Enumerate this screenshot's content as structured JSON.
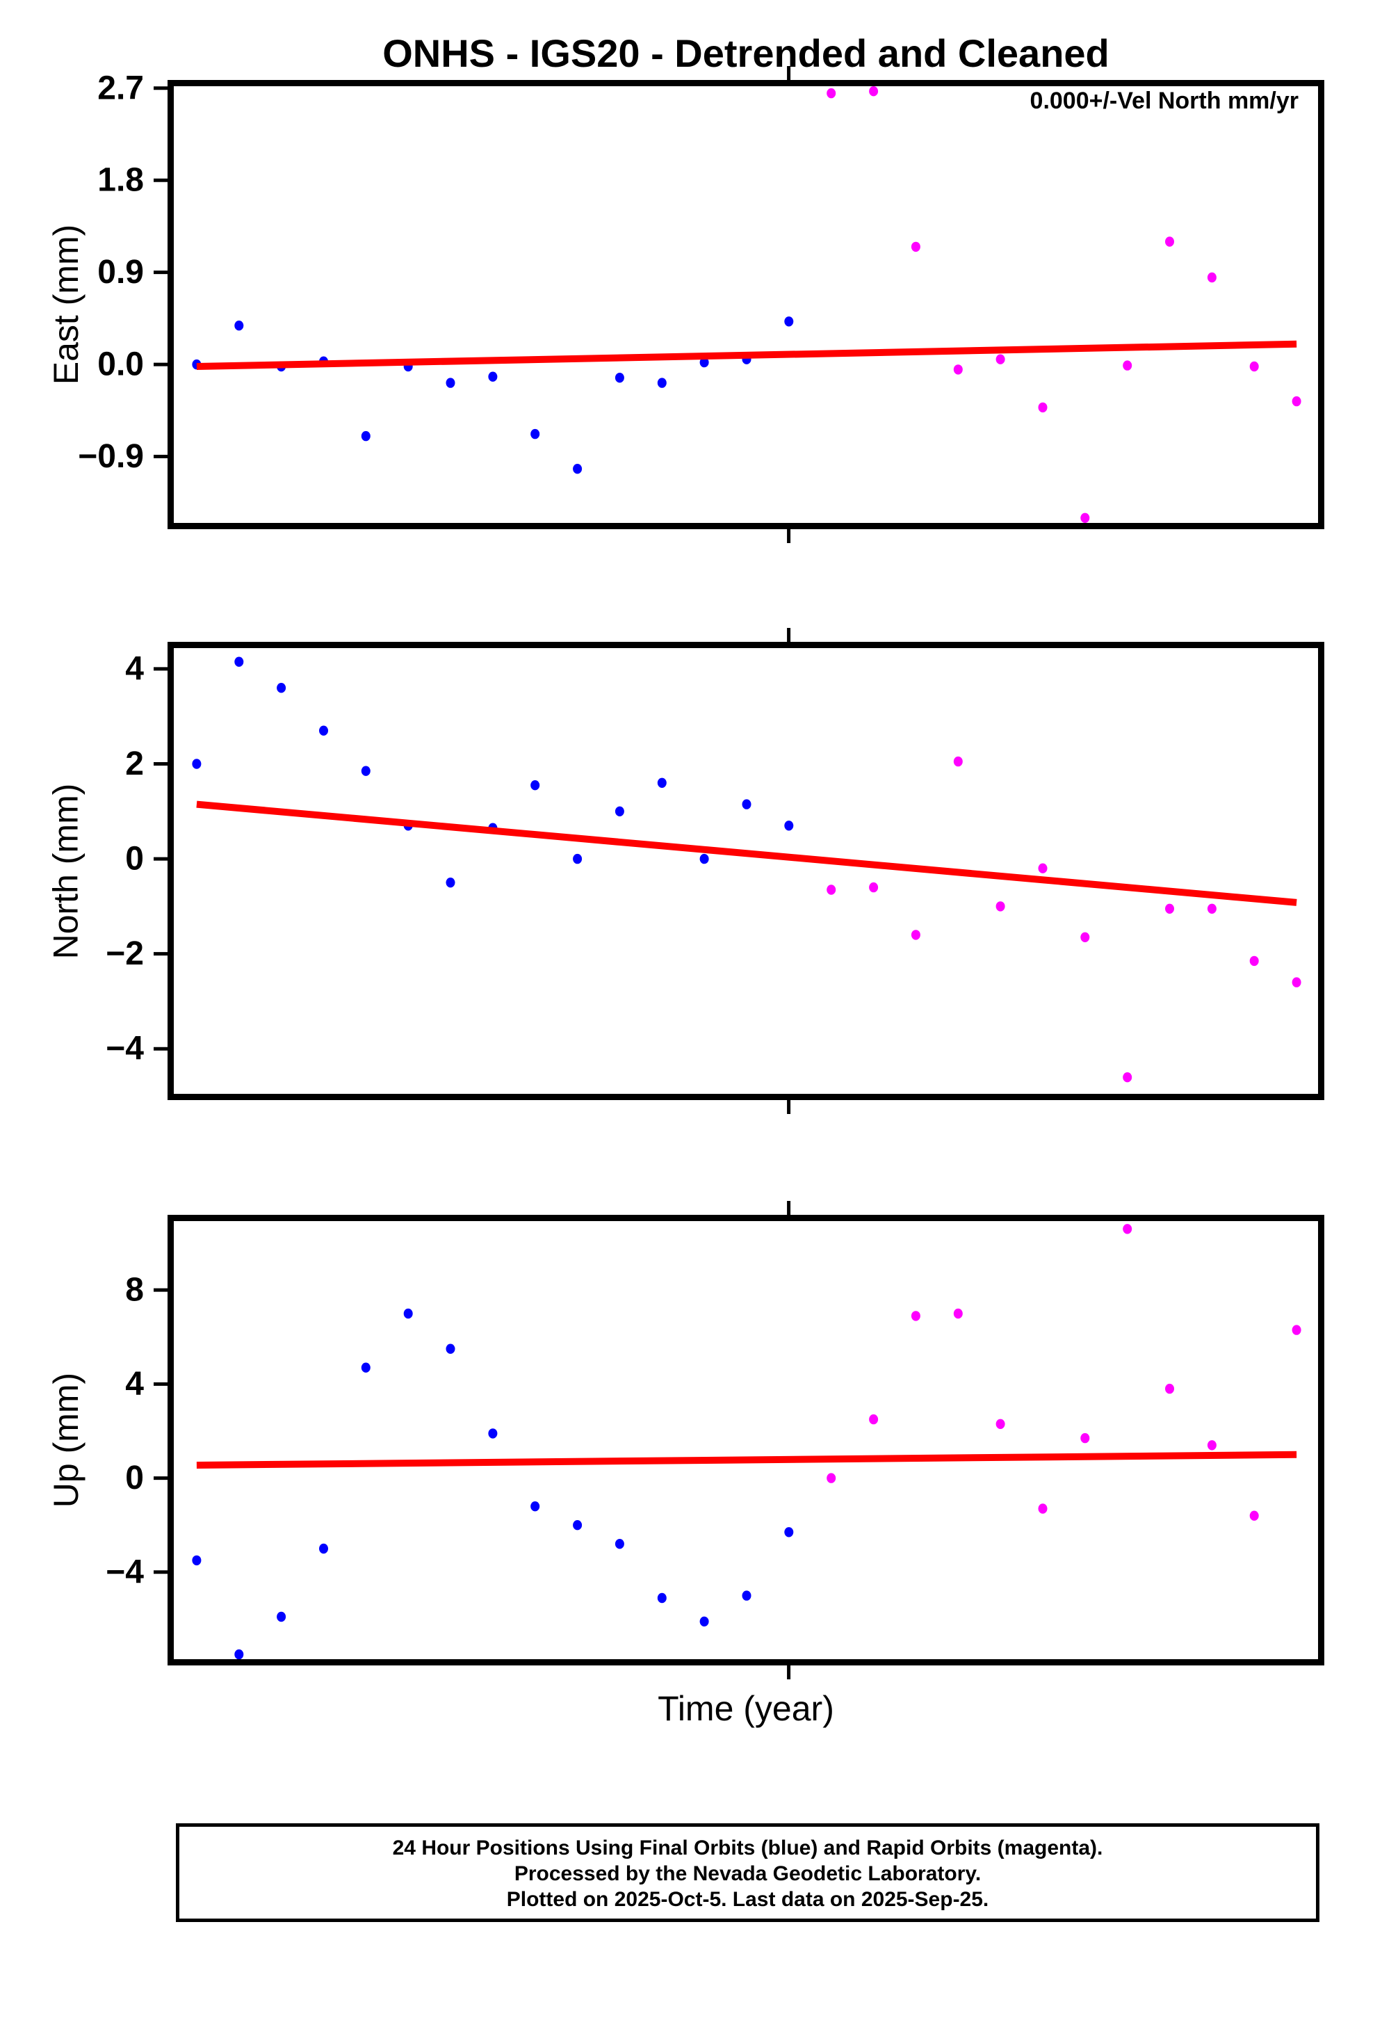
{
  "title": "ONHS - IGS20 - Detrended and Cleaned",
  "annotation": "0.000+/-Vel North mm/yr",
  "xlabel": "Time (year)",
  "colors": {
    "final_orbits": "#0000ff",
    "rapid_orbits": "#ff00ff",
    "trend": "#ff0000",
    "axis": "#000000",
    "background": "#ffffff"
  },
  "footer": {
    "lines": [
      "24 Hour Positions Using Final Orbits (blue) and Rapid Orbits (magenta).",
      "Processed by the Nevada Geodetic Laboratory.",
      "Plotted on 2025-Oct-5. Last data on 2025-Sep-25."
    ]
  },
  "chart_data": [
    {
      "name": "East",
      "type": "scatter",
      "ylabel": "East (mm)",
      "ylim": [
        -1.61,
        2.78
      ],
      "grid": false,
      "yticks": [
        {
          "value": 2.7,
          "label": "2.7"
        },
        {
          "value": 1.8,
          "label": "1.8"
        },
        {
          "value": 0.9,
          "label": "0.9"
        },
        {
          "value": 0.0,
          "label": "0.0"
        },
        {
          "value": -0.9,
          "label": "−0.9"
        }
      ],
      "series": [
        {
          "name": "Final Orbits (blue)",
          "color": "#0000ff",
          "start_index": 0,
          "values": [
            0.0,
            0.38,
            -0.02,
            0.03,
            -0.7,
            -0.02,
            -0.18,
            -0.12,
            -0.68,
            -1.02,
            -0.13,
            -0.18,
            0.02,
            0.05,
            0.42
          ]
        },
        {
          "name": "Rapid Orbits (magenta)",
          "color": "#ff00ff",
          "start_index": 15,
          "values": [
            2.65,
            2.67,
            1.15,
            -0.05,
            0.05,
            -0.42,
            -1.5,
            -0.01,
            1.2,
            0.85,
            -0.02,
            -0.36
          ]
        }
      ],
      "trend": {
        "start_value": -0.02,
        "end_value": 0.2
      },
      "x_axis": {
        "n_points": 27,
        "first_frac": 0.0252,
        "last_frac": 0.976,
        "tick_frac": 0.537,
        "labeled": false
      }
    },
    {
      "name": "North",
      "type": "scatter",
      "ylabel": "North (mm)",
      "ylim": [
        -5.08,
        4.57
      ],
      "grid": false,
      "yticks": [
        {
          "value": 4,
          "label": "4"
        },
        {
          "value": 2,
          "label": "2"
        },
        {
          "value": 0,
          "label": "0"
        },
        {
          "value": -2,
          "label": "−2"
        },
        {
          "value": -4,
          "label": "−4"
        }
      ],
      "series": [
        {
          "name": "Final Orbits (blue)",
          "color": "#0000ff",
          "start_index": 0,
          "values": [
            2.0,
            4.15,
            3.6,
            2.7,
            1.85,
            0.7,
            -0.5,
            0.65,
            1.55,
            0.0,
            1.0,
            1.6,
            0.0,
            1.15,
            0.7
          ]
        },
        {
          "name": "Rapid Orbits (magenta)",
          "color": "#ff00ff",
          "start_index": 15,
          "values": [
            -0.65,
            -0.6,
            -1.6,
            2.05,
            -1.0,
            -0.2,
            -1.65,
            -4.6,
            -1.05,
            -1.05,
            -2.15,
            -2.6
          ]
        }
      ],
      "trend": {
        "start_value": 1.15,
        "end_value": -0.92
      },
      "x_axis": {
        "n_points": 27,
        "first_frac": 0.0252,
        "last_frac": 0.976,
        "tick_frac": 0.537,
        "labeled": false
      }
    },
    {
      "name": "Up",
      "type": "scatter",
      "ylabel": "Up (mm)",
      "ylim": [
        -7.97,
        11.2
      ],
      "grid": false,
      "yticks": [
        {
          "value": 8,
          "label": "8"
        },
        {
          "value": 4,
          "label": "4"
        },
        {
          "value": 0,
          "label": "0"
        },
        {
          "value": -4,
          "label": "−4"
        }
      ],
      "series": [
        {
          "name": "Final Orbits (blue)",
          "color": "#0000ff",
          "start_index": 0,
          "values": [
            -3.5,
            -7.5,
            -5.9,
            -3.0,
            4.7,
            7.0,
            5.5,
            1.9,
            -1.2,
            -2.0,
            -2.8,
            -5.1,
            -6.1,
            -5.0,
            -2.3
          ]
        },
        {
          "name": "Rapid Orbits (magenta)",
          "color": "#ff00ff",
          "start_index": 15,
          "values": [
            0.0,
            2.5,
            6.9,
            7.0,
            2.3,
            -1.3,
            1.7,
            10.6,
            3.8,
            1.4,
            -1.6,
            6.3
          ]
        }
      ],
      "trend": {
        "start_value": 0.55,
        "end_value": 1.0
      },
      "x_axis": {
        "n_points": 27,
        "first_frac": 0.0252,
        "last_frac": 0.976,
        "tick_frac": 0.537,
        "labeled": false
      }
    }
  ]
}
